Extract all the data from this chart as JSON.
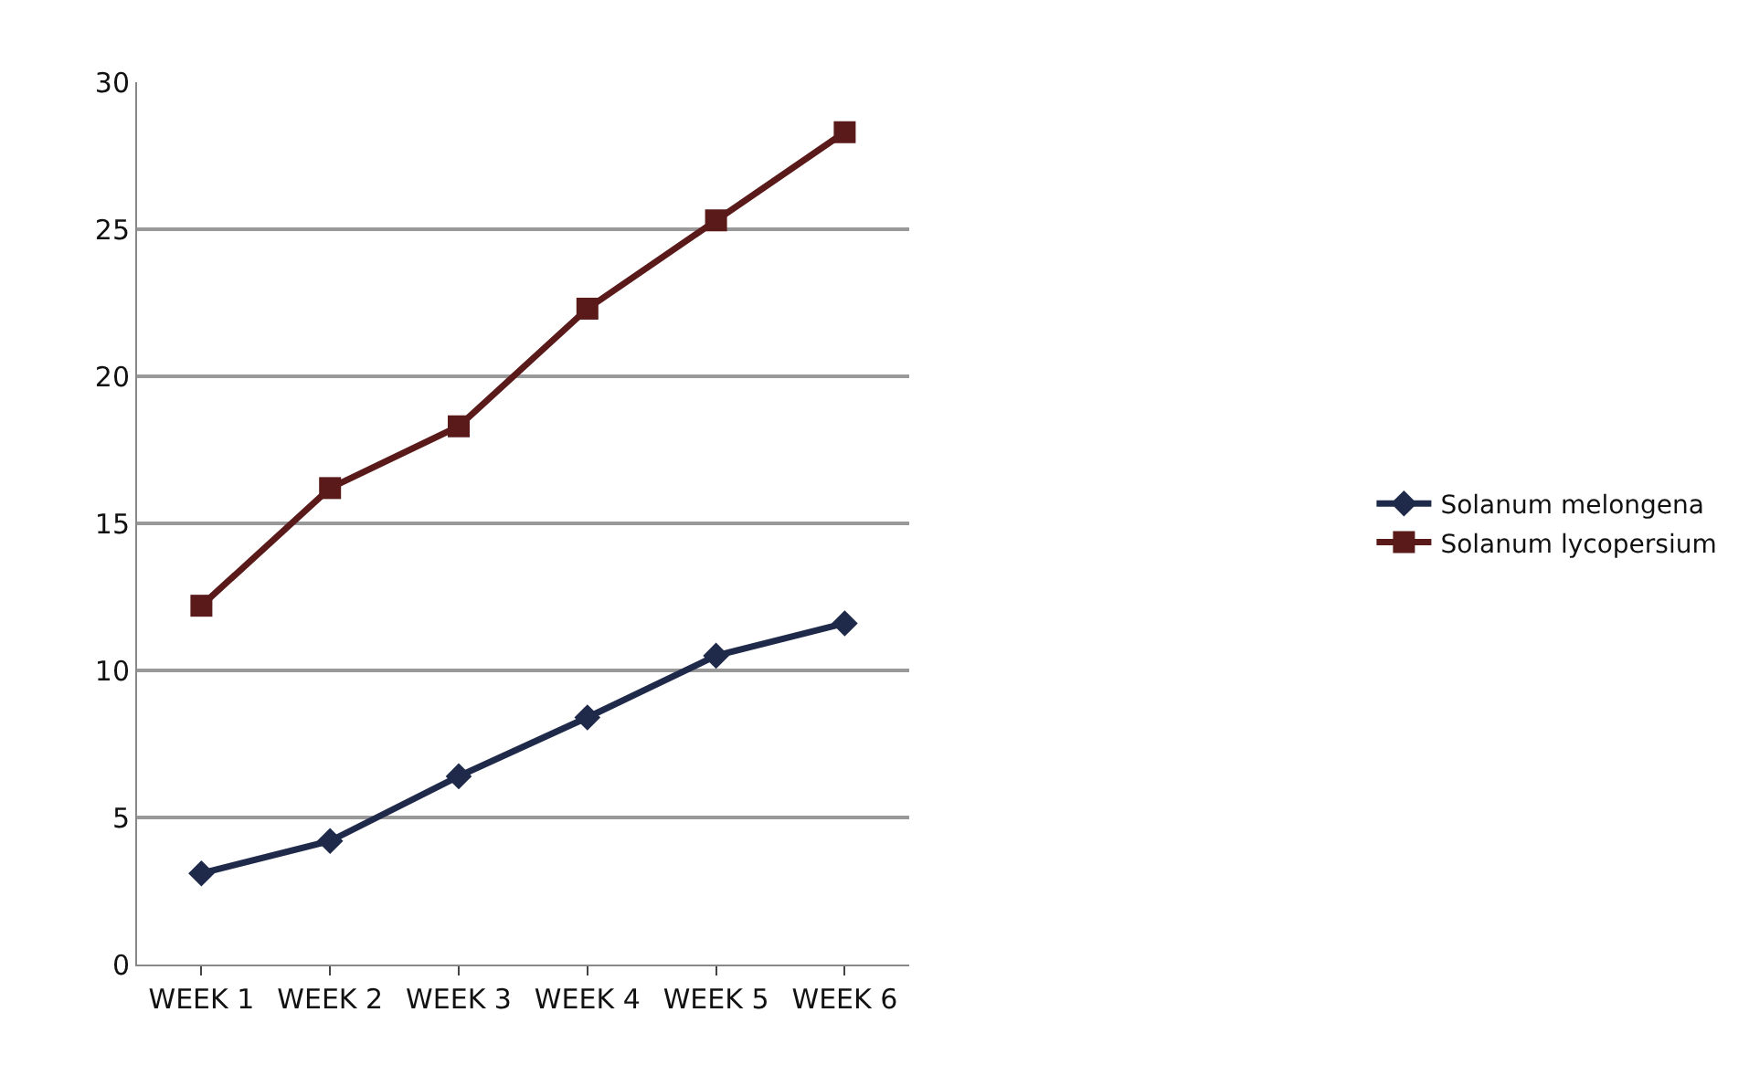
{
  "chart_data": {
    "type": "line",
    "categories": [
      "WEEK 1",
      "WEEK 2",
      "WEEK 3",
      "WEEK 4",
      "WEEK 5",
      "WEEK 6"
    ],
    "series": [
      {
        "name": "Solanum melongena",
        "color": "#1f2a4a",
        "marker": "diamond",
        "values": [
          3.1,
          4.2,
          6.4,
          8.4,
          10.5,
          11.6
        ]
      },
      {
        "name": "Solanum lycopersium",
        "color": "#5a1a1a",
        "marker": "square",
        "values": [
          12.2,
          16.2,
          18.3,
          22.3,
          25.3,
          28.3
        ]
      }
    ],
    "ylim": [
      0,
      30
    ],
    "yticks": [
      0,
      5,
      10,
      15,
      20,
      25,
      30
    ],
    "grid": "y",
    "legend": "right",
    "line_style": "solid"
  }
}
